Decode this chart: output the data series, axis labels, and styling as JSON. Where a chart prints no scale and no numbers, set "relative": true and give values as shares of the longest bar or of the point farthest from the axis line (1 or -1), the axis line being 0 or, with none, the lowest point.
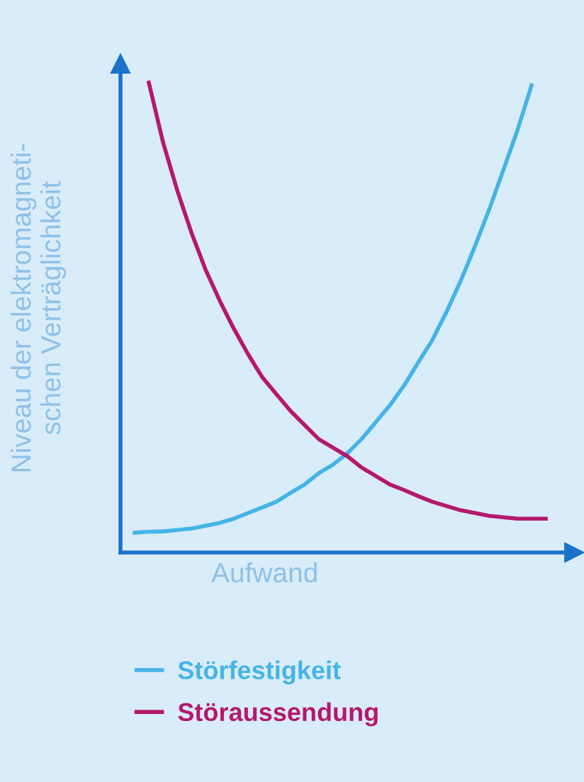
{
  "chart_data": {
    "type": "line",
    "relative": true,
    "xlabel": "Aufwand",
    "ylabel": "Niveau der elektromagneti-\nschen Verträglichkeit",
    "categories": [
      null,
      null,
      null,
      null,
      null,
      null,
      null,
      null,
      null,
      null,
      null,
      null,
      null,
      null,
      null,
      null,
      null,
      null,
      null,
      null,
      null,
      null,
      null,
      null,
      null,
      null,
      null,
      null,
      null,
      null
    ],
    "series": [
      {
        "name": "Störfestigkeit",
        "color": "#45b4e6",
        "values": [
          0.042,
          0.044,
          0.045,
          0.048,
          0.051,
          0.057,
          0.063,
          0.072,
          0.084,
          0.096,
          0.108,
          0.127,
          0.145,
          0.169,
          0.187,
          0.211,
          0.241,
          0.277,
          0.313,
          0.355,
          0.404,
          0.452,
          0.512,
          0.578,
          0.651,
          0.729,
          0.813,
          0.898,
          0.994,
          null
        ]
      },
      {
        "name": "Störaussendung",
        "color": "#b5186d",
        "values": [
          null,
          1,
          0.873,
          0.771,
          0.681,
          0.602,
          0.536,
          0.476,
          0.422,
          0.373,
          0.337,
          0.301,
          0.271,
          0.241,
          0.223,
          0.205,
          0.181,
          0.163,
          0.145,
          0.133,
          0.12,
          0.108,
          0.099,
          0.09,
          0.084,
          0.078,
          0.075,
          0.072,
          0.072,
          0.072
        ]
      }
    ],
    "legend": "bottom",
    "grid": false
  }
}
